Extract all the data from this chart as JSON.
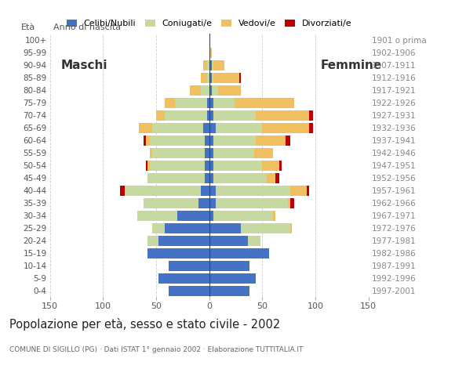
{
  "age_groups": [
    "0-4",
    "5-9",
    "10-14",
    "15-19",
    "20-24",
    "25-29",
    "30-34",
    "35-39",
    "40-44",
    "45-49",
    "50-54",
    "55-59",
    "60-64",
    "65-69",
    "70-74",
    "75-79",
    "80-84",
    "85-89",
    "90-94",
    "95-99",
    "100+"
  ],
  "birth_years": [
    "1997-2001",
    "1992-1996",
    "1987-1991",
    "1982-1986",
    "1977-1981",
    "1972-1976",
    "1967-1971",
    "1962-1966",
    "1957-1961",
    "1952-1956",
    "1947-1951",
    "1942-1946",
    "1937-1941",
    "1932-1936",
    "1927-1931",
    "1922-1926",
    "1917-1921",
    "1912-1916",
    "1907-1911",
    "1902-1906",
    "1901 o prima"
  ],
  "male": {
    "single": [
      38,
      48,
      38,
      58,
      48,
      42,
      30,
      10,
      8,
      4,
      4,
      4,
      4,
      6,
      2,
      2,
      0,
      0,
      0,
      0,
      0
    ],
    "married": [
      0,
      0,
      0,
      0,
      10,
      12,
      38,
      52,
      72,
      54,
      52,
      50,
      52,
      48,
      40,
      30,
      8,
      2,
      2,
      0,
      0
    ],
    "widowed": [
      0,
      0,
      0,
      0,
      0,
      0,
      0,
      0,
      0,
      0,
      2,
      2,
      4,
      12,
      8,
      10,
      10,
      6,
      4,
      0,
      0
    ],
    "divorced": [
      0,
      0,
      0,
      0,
      0,
      0,
      0,
      0,
      4,
      0,
      2,
      0,
      2,
      0,
      0,
      0,
      0,
      0,
      0,
      0,
      0
    ]
  },
  "female": {
    "single": [
      38,
      44,
      38,
      56,
      36,
      30,
      4,
      6,
      6,
      4,
      4,
      4,
      4,
      6,
      4,
      4,
      2,
      2,
      2,
      0,
      0
    ],
    "married": [
      0,
      0,
      0,
      0,
      12,
      46,
      56,
      68,
      70,
      50,
      46,
      38,
      40,
      44,
      40,
      20,
      6,
      2,
      2,
      0,
      0
    ],
    "widowed": [
      0,
      0,
      0,
      0,
      0,
      2,
      2,
      2,
      16,
      8,
      16,
      18,
      28,
      44,
      50,
      56,
      22,
      24,
      10,
      2,
      0
    ],
    "divorced": [
      0,
      0,
      0,
      0,
      0,
      0,
      0,
      4,
      2,
      4,
      2,
      0,
      4,
      4,
      4,
      0,
      0,
      2,
      0,
      0,
      0
    ]
  },
  "colors": {
    "single": "#4472c4",
    "married": "#c5d9a0",
    "widowed": "#f0c060",
    "divorced": "#c00000"
  },
  "xlim": 150,
  "title": "Popolazione per età, sesso e stato civile - 2002",
  "subtitle": "COMUNE DI SIGILLO (PG) · Dati ISTAT 1° gennaio 2002 · Elaborazione TUTTITALIA.IT",
  "legend_labels": [
    "Celibi/Nubili",
    "Coniugati/e",
    "Vedovi/e",
    "Divorziati/e"
  ],
  "xlabel_left": "Maschi",
  "xlabel_right": "Femmine",
  "ylabel_left": "Età",
  "ylabel_right": "Anno di nascita"
}
